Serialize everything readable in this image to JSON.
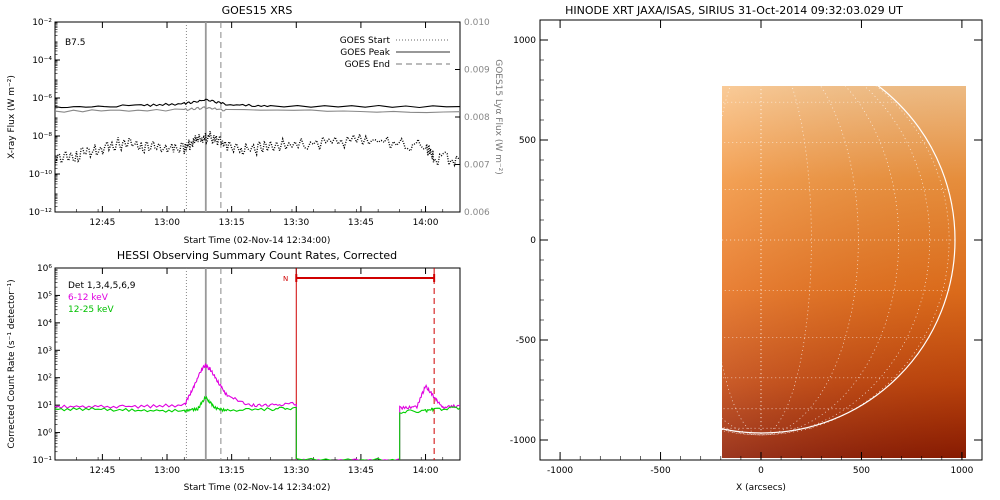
{
  "chart_data": [
    {
      "type": "line",
      "title": "GOES15 XRS",
      "xlabel": "Start Time (02-Nov-14 12:34:00)",
      "ylabel": "X-ray Flux (W m⁻²)",
      "ylabel_right": "GOES15 Lyα Flux (W m⁻²)",
      "class_label": "B7.5",
      "x_ticks": [
        "12:45",
        "13:00",
        "13:15",
        "13:30",
        "13:45",
        "14:00"
      ],
      "x_tick_minutes": [
        11,
        26,
        41,
        56,
        71,
        86
      ],
      "xlim_minutes": [
        0,
        94
      ],
      "y_ticks": [
        "10⁻²",
        "10⁻⁴",
        "10⁻⁶",
        "10⁻⁸",
        "10⁻¹⁰",
        "10⁻¹²"
      ],
      "y_tick_exponents": [
        -2,
        -4,
        -6,
        -8,
        -10,
        -12
      ],
      "ylim_exponent": [
        -12,
        -2
      ],
      "y_right_ticks": [
        "0.010",
        "0.009",
        "0.008",
        "0.007",
        "0.006"
      ],
      "legend": [
        {
          "label": "GOES Start",
          "style": "dotted"
        },
        {
          "label": "GOES Peak",
          "style": "solid"
        },
        {
          "label": "GOES End",
          "style": "dashed"
        }
      ],
      "event_lines_minutes": {
        "start": 30.5,
        "peak": 35,
        "end": 38.5
      },
      "series": [
        {
          "color": "#000000",
          "style": "solid",
          "x": [
            0,
            20,
            30,
            35,
            40,
            50,
            94
          ],
          "y_log10": [
            -6.45,
            -6.4,
            -6.3,
            -6.1,
            -6.35,
            -6.42,
            -6.45
          ]
        },
        {
          "color": "#888888",
          "style": "solid",
          "x": [
            0,
            30,
            35,
            40,
            94
          ],
          "y_log10": [
            -6.7,
            -6.62,
            -6.5,
            -6.65,
            -6.72
          ]
        },
        {
          "color": "#000000",
          "style": "dotted",
          "x": [
            0,
            5,
            10,
            15,
            20,
            25,
            30,
            33,
            36,
            40,
            45,
            50,
            60,
            70,
            80,
            86,
            88,
            94
          ],
          "y_log10": [
            -9.2,
            -9.0,
            -8.7,
            -8.4,
            -8.5,
            -8.7,
            -8.6,
            -8.2,
            -8.0,
            -8.6,
            -8.7,
            -8.5,
            -8.4,
            -8.2,
            -8.4,
            -8.5,
            -9.2,
            -9.2
          ]
        }
      ]
    },
    {
      "type": "line",
      "title": "HESSI Observing Summary Count Rates, Corrected",
      "xlabel": "Start Time (02-Nov-14 12:34:02)",
      "ylabel": "Corrected Count Rate (s⁻¹ detector⁻¹)",
      "x_ticks": [
        "12:45",
        "13:00",
        "13:15",
        "13:30",
        "13:45",
        "14:00"
      ],
      "x_tick_minutes": [
        11,
        26,
        41,
        56,
        71,
        86
      ],
      "xlim_minutes": [
        0,
        94
      ],
      "y_ticks": [
        "10⁶",
        "10⁵",
        "10⁴",
        "10³",
        "10²",
        "10¹",
        "10⁰",
        "10⁻¹"
      ],
      "y_tick_exponents": [
        6,
        5,
        4,
        3,
        2,
        1,
        0,
        -1
      ],
      "ylim_exponent": [
        -1,
        6
      ],
      "legend": [
        {
          "label": "Det 1,3,4,5,6,9",
          "color": "#000000"
        },
        {
          "label": "6-12 keV",
          "color": "#e000e0"
        },
        {
          "label": "12-25 keV",
          "color": "#00d000"
        }
      ],
      "event_lines_minutes": {
        "start": 30.5,
        "peak": 35,
        "end": 38.5
      },
      "night_label": "N",
      "night_interval_minutes": [
        56,
        88
      ],
      "series": [
        {
          "name": "6-12 keV",
          "color": "#e000e0",
          "x": [
            0,
            10,
            20,
            30,
            32,
            34,
            35,
            36,
            38,
            40,
            45,
            50,
            56,
            56.01,
            80,
            80.01,
            84,
            86,
            88,
            90,
            94
          ],
          "y_log10": [
            0.95,
            0.95,
            0.95,
            1.0,
            1.6,
            2.3,
            2.45,
            2.3,
            1.8,
            1.35,
            1.0,
            1.0,
            1.05,
            -1,
            -1,
            0.9,
            0.95,
            1.7,
            1.3,
            0.9,
            1.0
          ]
        },
        {
          "name": "12-25 keV",
          "color": "#00d000",
          "x": [
            0,
            10,
            20,
            30,
            33,
            35,
            37,
            40,
            50,
            56,
            56.01,
            80,
            80.01,
            86,
            88,
            94
          ],
          "y_log10": [
            0.85,
            0.85,
            0.8,
            0.8,
            0.85,
            1.3,
            0.9,
            0.8,
            0.85,
            0.9,
            -1,
            -1,
            0.75,
            0.8,
            0.85,
            0.9
          ]
        }
      ]
    },
    {
      "type": "heatmap",
      "title": "HINODE XRT JAXA/ISAS, SIRIUS 31-Oct-2014 09:32:03.029 UT",
      "xlabel": "X (arcsecs)",
      "ylabel": "",
      "xlim": [
        -1100,
        1100
      ],
      "ylim": [
        -1100,
        1100
      ],
      "x_ticks": [
        -1000,
        -500,
        0,
        500,
        1000
      ],
      "y_ticks": [
        1000,
        500,
        0,
        -500,
        -1000
      ],
      "image_extent_arcsec": {
        "x": [
          -190,
          1100
        ],
        "y": [
          -960,
          770
        ]
      },
      "solar_radius_arcsec": 970,
      "grid": true,
      "colormap": [
        "#f8bf80",
        "#f08a3a",
        "#e06a1a",
        "#b83a0a",
        "#8a1a00"
      ]
    }
  ]
}
